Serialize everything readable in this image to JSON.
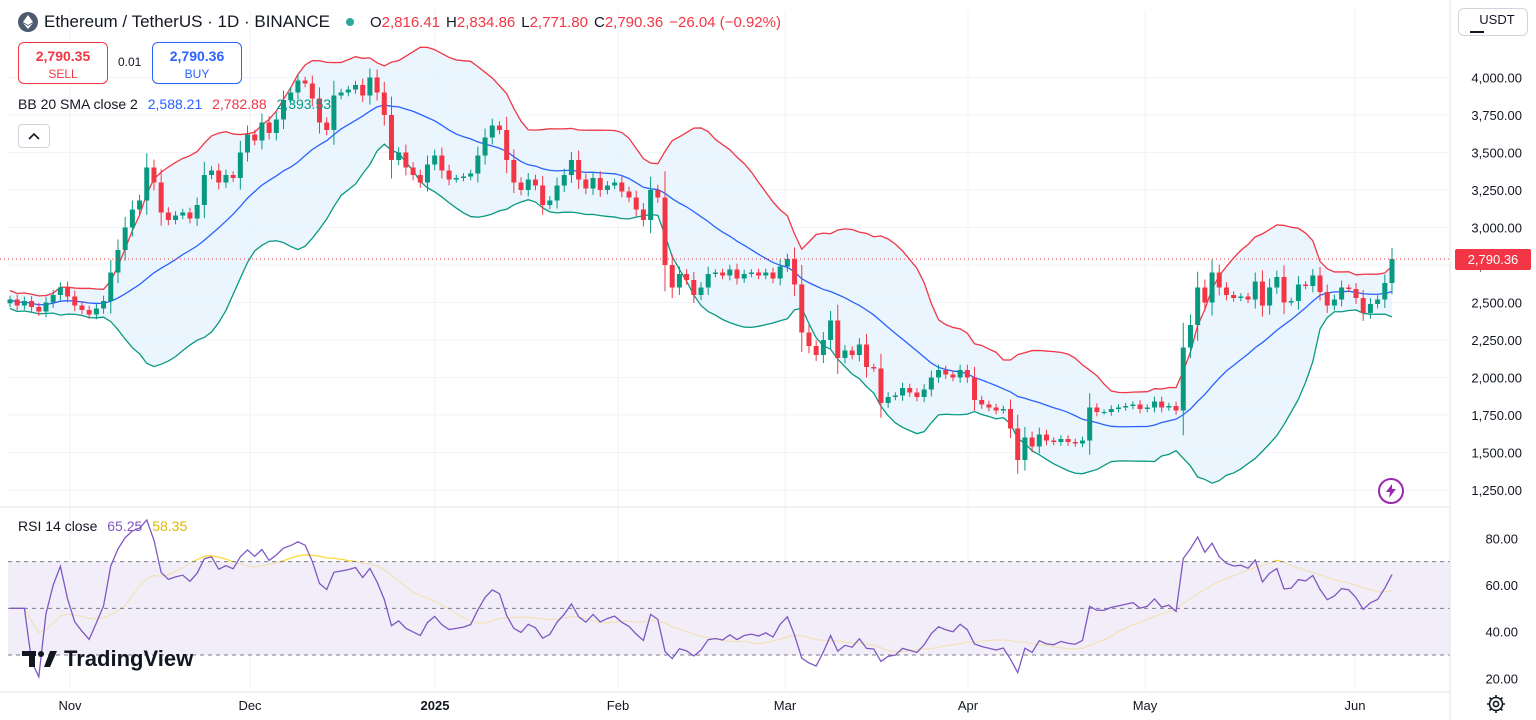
{
  "header": {
    "symbol": "Ethereum / TetherUS · 1D · BINANCE",
    "o_label": "O",
    "o": "2,816.41",
    "h_label": "H",
    "h": "2,834.86",
    "l_label": "L",
    "l": "2,771.80",
    "c_label": "C",
    "c": "2,790.36",
    "change": "−26.04 (−0.92%)"
  },
  "trade": {
    "sell_price": "2,790.35",
    "sell_label": "SELL",
    "spread": "0.01",
    "buy_price": "2,790.36",
    "buy_label": "BUY"
  },
  "bb": {
    "label": "BB 20 SMA close 2",
    "basis": "2,588.21",
    "upper": "2,782.88",
    "lower": "2,393.53"
  },
  "rsi": {
    "label": "RSI 14 close",
    "value": "65.25",
    "ma": "58.35"
  },
  "currency": "USDT",
  "brand": "TradingView",
  "colors": {
    "up": "#089981",
    "down": "#f23645",
    "bb_basis": "#2962ff",
    "bb_upper": "#f23645",
    "bb_lower": "#089981",
    "bb_fill": "#e3f2fd",
    "rsi_line": "#7e57c2",
    "rsi_ma": "#fdd835",
    "rsi_band": "#ede7f6",
    "price_tag": "#f23645"
  },
  "icons": {
    "collapse": "chevron-up-icon",
    "logo": "ethereum-icon",
    "settings": "gear-icon",
    "alert": "bolt-icon"
  },
  "chart_data": [
    {
      "type": "candlestick",
      "title": "Ethereum / TetherUS · 1D · BINANCE",
      "ylim": [
        1150,
        4250
      ],
      "y_ticks": [
        "4,000.00",
        "3,750.00",
        "3,500.00",
        "3,250.00",
        "3,000.00",
        "2,750.00",
        "2,500.00",
        "2,250.00",
        "2,000.00",
        "1,750.00",
        "1,500.00",
        "1,250.00"
      ],
      "y_tick_values": [
        4000,
        3750,
        3500,
        3250,
        3000,
        2750,
        2500,
        2250,
        2000,
        1750,
        1500,
        1250
      ],
      "x_labels": [
        "Nov",
        "Dec",
        "2025",
        "Feb",
        "Mar",
        "Apr",
        "May",
        "Jun"
      ],
      "last_price_label": "2,790.36",
      "last_price": 2790.36,
      "close_series": [
        2520,
        2480,
        2510,
        2470,
        2440,
        2500,
        2550,
        2600,
        2540,
        2480,
        2450,
        2420,
        2460,
        2510,
        2700,
        2850,
        3000,
        3120,
        3180,
        3400,
        3300,
        3100,
        3050,
        3080,
        3100,
        3060,
        3150,
        3350,
        3380,
        3300,
        3350,
        3330,
        3500,
        3620,
        3580,
        3700,
        3630,
        3720,
        3850,
        3900,
        3980,
        3960,
        3860,
        3700,
        3650,
        3880,
        3900,
        3920,
        3950,
        3880,
        4000,
        3900,
        3750,
        3450,
        3500,
        3400,
        3350,
        3300,
        3420,
        3480,
        3380,
        3320,
        3330,
        3340,
        3360,
        3480,
        3600,
        3680,
        3650,
        3450,
        3300,
        3250,
        3320,
        3280,
        3150,
        3180,
        3280,
        3350,
        3450,
        3320,
        3260,
        3330,
        3250,
        3280,
        3300,
        3240,
        3200,
        3120,
        3050,
        3250,
        3200,
        2750,
        2600,
        2690,
        2650,
        2550,
        2600,
        2690,
        2700,
        2680,
        2720,
        2660,
        2690,
        2700,
        2680,
        2700,
        2660,
        2740,
        2790,
        2620,
        2300,
        2210,
        2150,
        2250,
        2380,
        2130,
        2180,
        2150,
        2220,
        2070,
        2060,
        1830,
        1870,
        1880,
        1930,
        1900,
        1870,
        1920,
        2000,
        2050,
        2020,
        2000,
        2050,
        2000,
        1850,
        1820,
        1800,
        1780,
        1790,
        1660,
        1450,
        1600,
        1540,
        1620,
        1580,
        1570,
        1590,
        1570,
        1560,
        1580,
        1800,
        1770,
        1770,
        1790,
        1800,
        1810,
        1820,
        1790,
        1800,
        1840,
        1800,
        1810,
        1780,
        2200,
        2350,
        2600,
        2500,
        2700,
        2600,
        2550,
        2530,
        2540,
        2520,
        2640,
        2480,
        2600,
        2670,
        2500,
        2510,
        2620,
        2610,
        2680,
        2570,
        2480,
        2520,
        2600,
        2590,
        2530,
        2430,
        2490,
        2520,
        2630,
        2790
      ],
      "rsi_panel": {
        "title": "RSI 14 close",
        "ylim": [
          15,
          90
        ],
        "y_ticks": [
          "80.00",
          "60.00",
          "40.00",
          "20.00"
        ],
        "y_tick_values": [
          80,
          60,
          40,
          20
        ],
        "bands": [
          70,
          50,
          30
        ],
        "rsi_value": 65.25,
        "rsi_ma_value": 58.35
      }
    }
  ]
}
